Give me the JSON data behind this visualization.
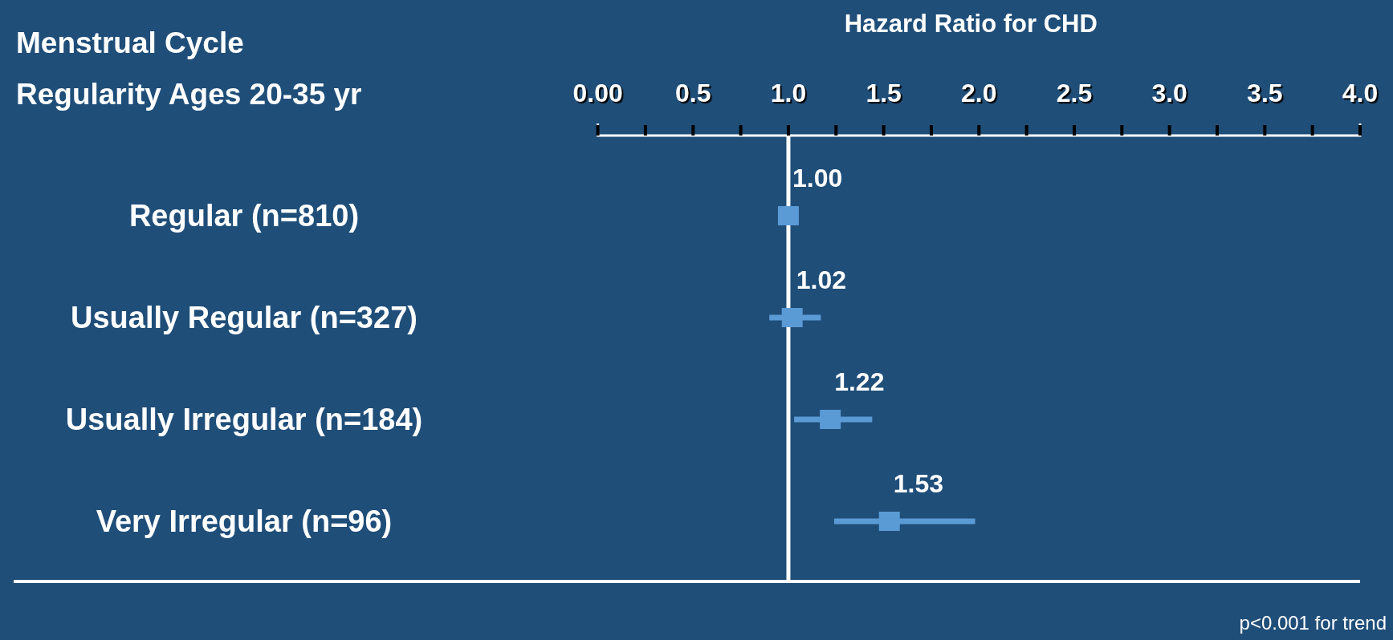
{
  "chart_data": {
    "type": "scatter",
    "orientation": "horizontal",
    "title": "Menstrual Cycle Regularity Ages 20-35 yr",
    "xlabel": "Hazard Ratio for CHD",
    "categories": [
      "Regular (n=810)",
      "Usually Regular (n=327)",
      "Usually Irregular (n=184)",
      "Very Irregular (n=96)"
    ],
    "values": [
      1,
      1.02,
      1.22,
      1.53
    ],
    "value_labels": [
      "1.00",
      "1.02",
      "1.22",
      "1.53"
    ],
    "errors": [
      null,
      [
        0.9,
        1.17
      ],
      [
        1.03,
        1.44
      ],
      [
        1.24,
        1.98
      ]
    ],
    "color": "#5b9bd5",
    "marker": "square",
    "xlim": [
      0,
      4
    ],
    "xticks": [
      {
        "value": 0,
        "label": "0.00"
      },
      {
        "value": 0.25,
        "label": null
      },
      0.5,
      {
        "value": 0.75,
        "label": null
      },
      {
        "value": 1,
        "label": "1.0"
      },
      {
        "value": 1.25,
        "label": null
      },
      1.5,
      {
        "value": 1.75,
        "label": null
      },
      {
        "value": 2,
        "label": "2.0"
      },
      {
        "value": 2.25,
        "label": null
      },
      2.5,
      {
        "value": 2.75,
        "label": null
      },
      {
        "value": 3,
        "label": "3.0"
      },
      {
        "value": 3.25,
        "label": null
      },
      3.5,
      {
        "value": 3.75,
        "label": null
      },
      {
        "value": 4,
        "label": "4.0"
      }
    ],
    "ref_lines": [
      {
        "axis": "x",
        "value": 1,
        "color": "#ffffff"
      }
    ],
    "annotations": [
      "p<0.001 for trend"
    ],
    "grid": false
  }
}
